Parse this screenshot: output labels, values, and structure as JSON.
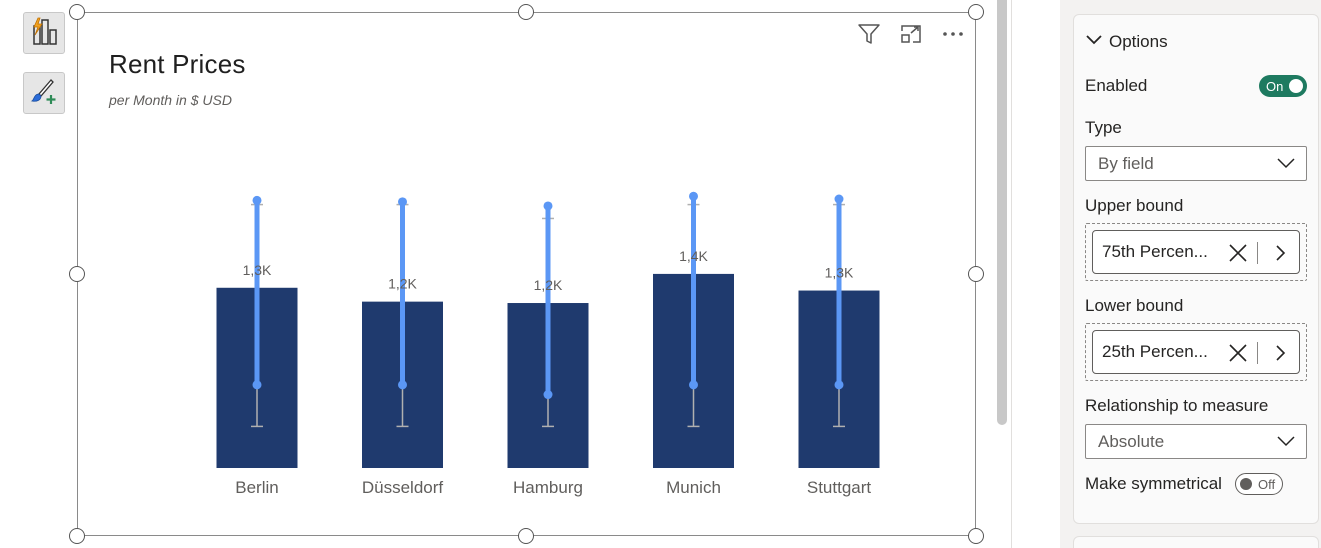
{
  "visual": {
    "title": "Rent Prices",
    "subtitle": "per Month in $ USD"
  },
  "toolbar_icons": [
    "build-visual-icon",
    "format-visual-icon"
  ],
  "header_icons": [
    "filter-icon",
    "focus-mode-icon",
    "more-options-icon"
  ],
  "chart_data": {
    "type": "bar",
    "categories": [
      "Berlin",
      "Düsseldorf",
      "Hamburg",
      "Munich",
      "Stuttgart"
    ],
    "values": [
      1300,
      1200,
      1190,
      1400,
      1280
    ],
    "data_labels": [
      "1,3K",
      "1,2K",
      "1,2K",
      "1,4K",
      "1,3K"
    ],
    "error_bars": {
      "upper": [
        1900,
        1900,
        1800,
        1900,
        1900
      ],
      "lower": [
        300,
        300,
        300,
        300,
        300
      ]
    },
    "error_bands": {
      "upper": [
        1930,
        1920,
        1890,
        1960,
        1940
      ],
      "lower": [
        600,
        600,
        530,
        600,
        600
      ]
    },
    "ylim": [
      0,
      2200
    ],
    "grid": false,
    "colors": {
      "bar": "#1f3a6e",
      "band": "#5b97f5",
      "whisker": "#b0b0b0"
    }
  },
  "pane": {
    "options_header": "Options",
    "enabled_label": "Enabled",
    "enabled_state": "On",
    "type_label": "Type",
    "type_value": "By field",
    "upper_label": "Upper bound",
    "upper_value": "75th Percen...",
    "lower_label": "Lower bound",
    "lower_value": "25th Percen...",
    "relationship_label": "Relationship to measure",
    "relationship_value": "Absolute",
    "symmetrical_label": "Make symmetrical",
    "symmetrical_state": "Off",
    "colors": {
      "toggle_on": "#1e7a60"
    }
  }
}
